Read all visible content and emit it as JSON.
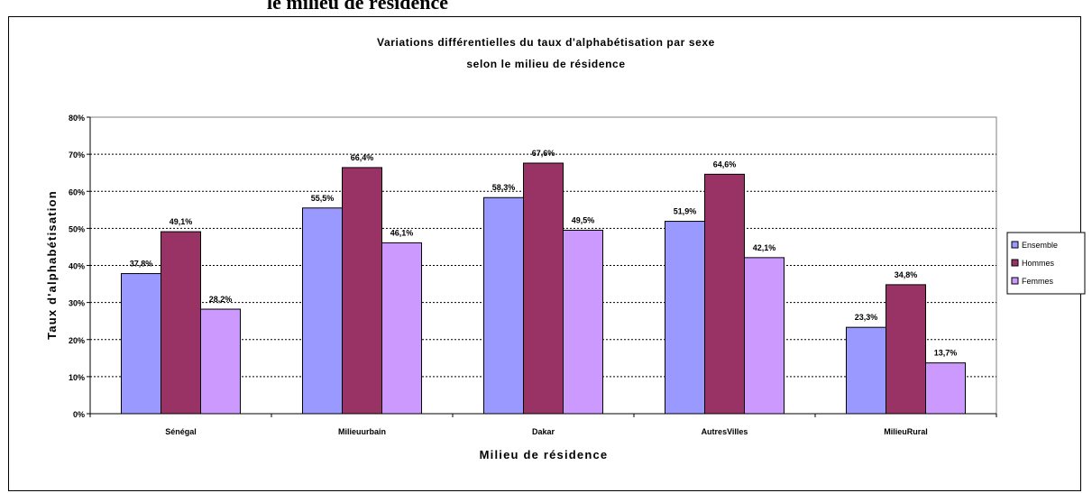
{
  "page": {
    "heading": "le milieu de résidence"
  },
  "chart_data": {
    "type": "bar",
    "title_line1": "Variations différentielles du taux d'alphabétisation par sexe",
    "title_line2": "selon le milieu de résidence",
    "xlabel": "Milieu de résidence",
    "ylabel": "Taux d'alphabétisation",
    "categories": [
      "Sénégal",
      "Milieuurbain",
      "Dakar",
      "AutresVilles",
      "MilieuRural"
    ],
    "series": [
      {
        "name": "Ensemble",
        "values": [
          37.8,
          55.5,
          58.3,
          51.9,
          23.3
        ],
        "labels": [
          "37,8%",
          "55,5%",
          "58,3%",
          "51,9%",
          "23,3%"
        ],
        "color": "#9999ff"
      },
      {
        "name": "Hommes",
        "values": [
          49.1,
          66.4,
          67.6,
          64.6,
          34.8
        ],
        "labels": [
          "49,1%",
          "66,4%",
          "67,6%",
          "64,6%",
          "34,8%"
        ],
        "color": "#993366"
      },
      {
        "name": "Femmes",
        "values": [
          28.2,
          46.1,
          49.5,
          42.1,
          13.7
        ],
        "labels": [
          "28,2%",
          "46,1%",
          "49,5%",
          "42,1%",
          "13,7%"
        ],
        "color": "#cc99ff"
      }
    ],
    "ylim": [
      0,
      80
    ],
    "yticks": [
      0,
      10,
      20,
      30,
      40,
      50,
      60,
      70,
      80
    ],
    "ytick_labels": [
      "0%",
      "10%",
      "20%",
      "30%",
      "40%",
      "50%",
      "60%",
      "70%",
      "80%"
    ],
    "grid": true,
    "legend_position": "right"
  }
}
